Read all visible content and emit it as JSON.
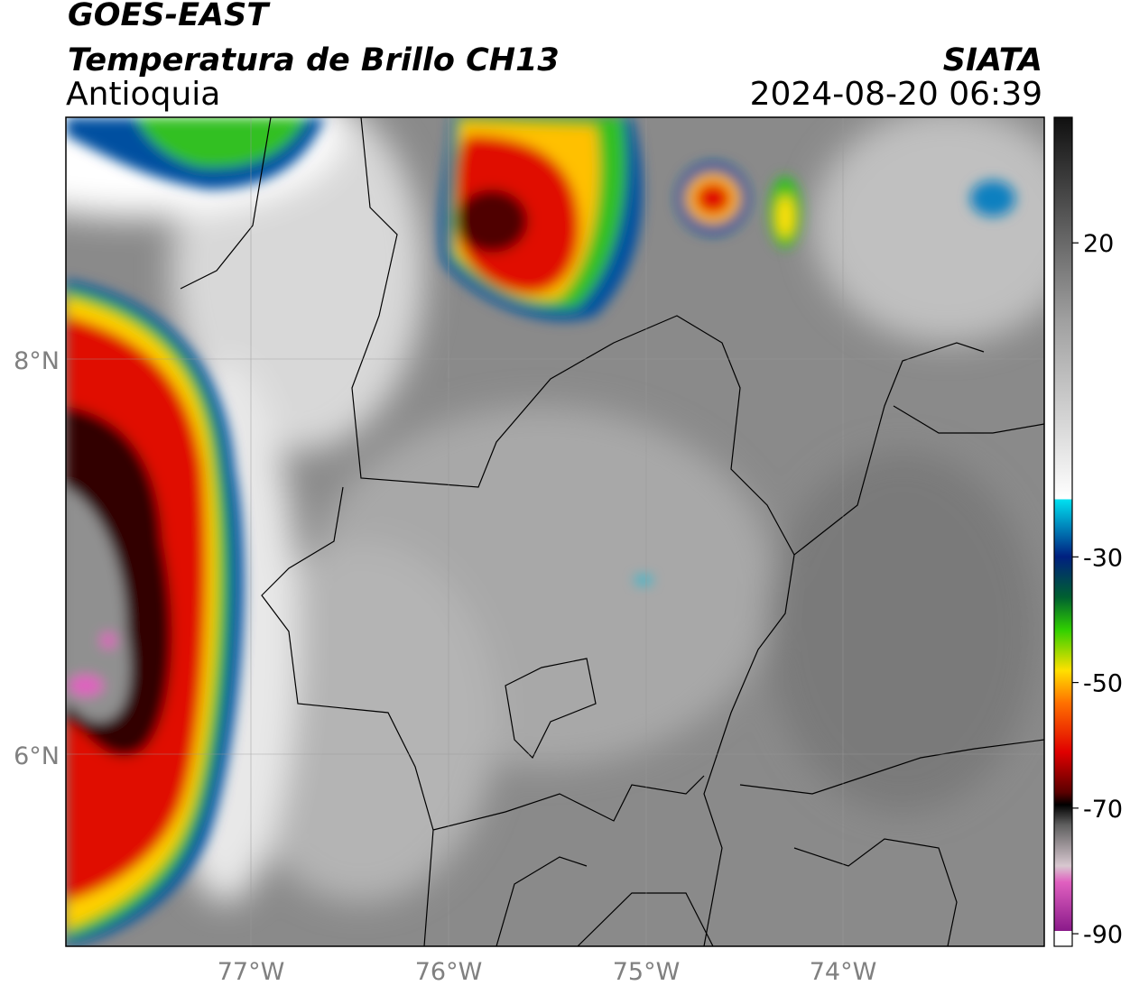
{
  "header": {
    "title": "GOES-EAST",
    "subtitle": "Temperatura de Brillo CH13",
    "region": "Antioquia",
    "source": "SIATA",
    "datetime": "2024-08-20 06:39"
  },
  "map": {
    "lat_labels": [
      "8°N",
      "6°N"
    ],
    "lon_labels": [
      "77°W",
      "76°W",
      "75°W",
      "74°W"
    ]
  },
  "colorbar": {
    "lim": [
      -92,
      40
    ],
    "ticks": [
      20,
      -30,
      -50,
      -70,
      -90
    ]
  }
}
